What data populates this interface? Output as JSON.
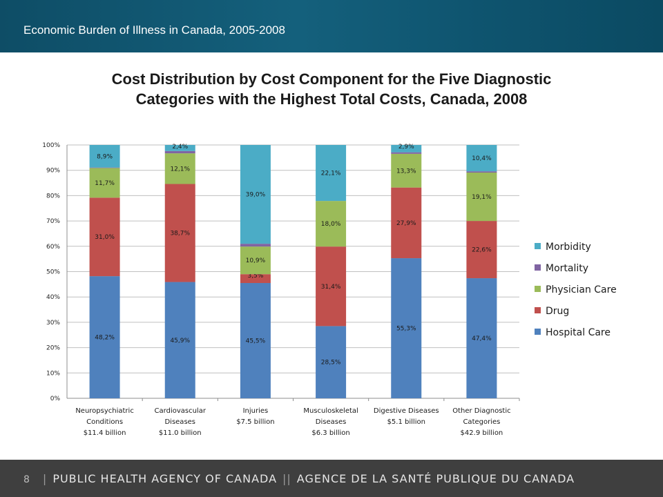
{
  "header": {
    "title": "Economic Burden of Illness in Canada, 2005-2008"
  },
  "chart_data": {
    "type": "bar",
    "stacked": true,
    "percent_stacked": true,
    "title_lines": [
      "Cost Distribution by Cost Component for the Five Diagnostic",
      "Categories with the Highest Total Costs, Canada, 2008"
    ],
    "categories": [
      [
        "Neuropsychiatric",
        "Conditions",
        "$11.4 billion"
      ],
      [
        "Cardiovascular",
        "Diseases",
        "$11.0 billion"
      ],
      [
        "Injuries",
        "$7.5 billion"
      ],
      [
        "Musculoskeletal",
        "Diseases",
        "$6.3 billion"
      ],
      [
        "Digestive Diseases",
        "$5.1 billion"
      ],
      [
        "Other Diagnostic",
        "Categories",
        "$42.9 billion"
      ]
    ],
    "y_ticks": [
      "0%",
      "10%",
      "20%",
      "30%",
      "40%",
      "50%",
      "60%",
      "70%",
      "80%",
      "90%",
      "100%"
    ],
    "ylim": [
      0,
      100
    ],
    "grid": true,
    "legend_position": "right",
    "series": [
      {
        "name": "Hospital Care",
        "color": "#4f81bd",
        "values": [
          48.2,
          45.9,
          45.5,
          28.5,
          55.3,
          47.4
        ],
        "labels": [
          "48,2%",
          "45,9%",
          "45,5%",
          "28,5%",
          "55,3%",
          "47,4%"
        ]
      },
      {
        "name": "Drug",
        "color": "#c0504d",
        "values": [
          31.0,
          38.7,
          3.5,
          31.4,
          27.9,
          22.6
        ],
        "labels": [
          "31,0%",
          "38,7%",
          "3,5%",
          "31,4%",
          "27,9%",
          "22,6%"
        ]
      },
      {
        "name": "Physician Care",
        "color": "#9bbb59",
        "values": [
          11.7,
          12.1,
          10.9,
          18.0,
          13.3,
          19.1
        ],
        "labels": [
          "11,7%",
          "12,1%",
          "10,9%",
          "18,0%",
          "13,3%",
          "19,1%"
        ]
      },
      {
        "name": "Mortality",
        "color": "#8064a2",
        "values": [
          0.2,
          0.9,
          1.1,
          0.0,
          0.6,
          0.5
        ],
        "labels": [
          "",
          "",
          "",
          "",
          "",
          ""
        ]
      },
      {
        "name": "Morbidity",
        "color": "#4bacc6",
        "values": [
          8.9,
          2.4,
          39.0,
          22.1,
          2.9,
          10.4
        ],
        "labels": [
          "8,9%",
          "2,4%",
          "39,0%",
          "22,1%",
          "2,9%",
          "10,4%"
        ]
      }
    ],
    "legend_order": [
      "Morbidity",
      "Mortality",
      "Physician Care",
      "Drug",
      "Hospital Care"
    ]
  },
  "footer": {
    "page_number": "8",
    "left_text": "PUBLIC HEALTH AGENCY OF CANADA",
    "right_text": "AGENCE DE LA SANTÉ PUBLIQUE DU CANADA"
  }
}
